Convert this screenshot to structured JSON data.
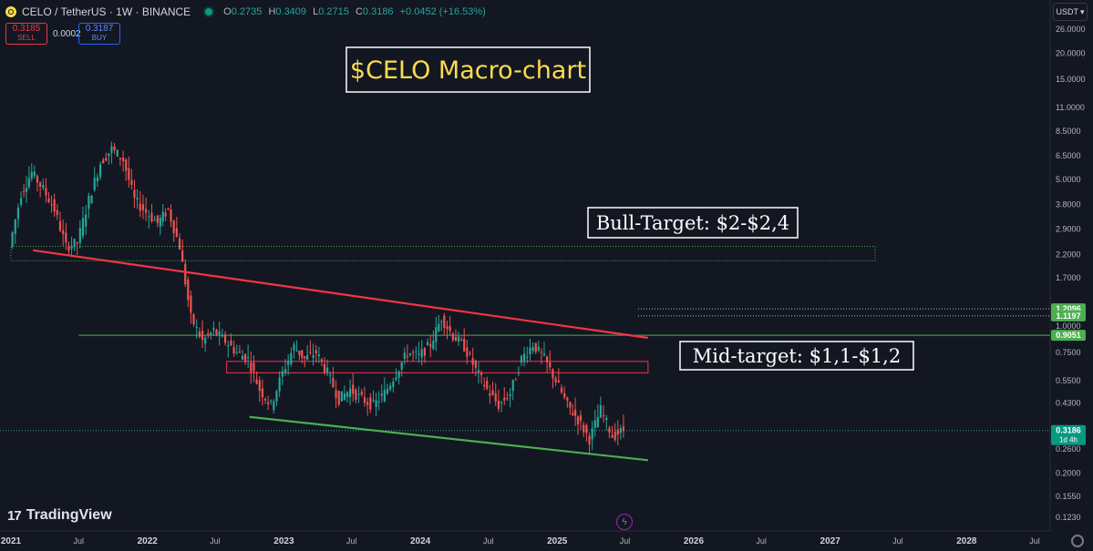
{
  "header": {
    "symbol": "CELO / TetherUS · 1W · BINANCE",
    "ohlc": [
      {
        "k": "O",
        "v": "0.2735"
      },
      {
        "k": "H",
        "v": "0.3409"
      },
      {
        "k": "L",
        "v": "0.2715"
      },
      {
        "k": "C",
        "v": "0.3186"
      }
    ],
    "change": "+0.0452 (+16.53%)"
  },
  "trade": {
    "sell_price": "0.3185",
    "sell_label": "SELL",
    "spread": "0.0002",
    "buy_price": "0.3187",
    "buy_label": "BUY"
  },
  "currency": "USDT",
  "branding": {
    "name": "TradingView",
    "mark": "17"
  },
  "colors": {
    "background": "#131722",
    "up": "#26a69a",
    "down": "#ef5350",
    "resistance": "#f23645",
    "support": "#4caf50",
    "annotation": "#ffffff",
    "title_text": "#fcdc4d"
  },
  "chart_data": {
    "type": "candlestick",
    "y_scale": "log",
    "ylim": [
      0.11,
      31
    ],
    "title": "$CELO Macro-chart",
    "y_ticks": [
      "26.0000",
      "20.0000",
      "15.0000",
      "11.0000",
      "8.5000",
      "6.5000",
      "5.0000",
      "3.8000",
      "2.9000",
      "2.2000",
      "1.7000",
      "1.0000",
      "0.7500",
      "0.5500",
      "0.4300",
      "0.3186",
      "0.2600",
      "0.2000",
      "0.1550",
      "0.1230"
    ],
    "y_tick_values": [
      26,
      20,
      15,
      11,
      8.5,
      6.5,
      5,
      3.8,
      2.9,
      2.2,
      1.7,
      1.0,
      0.75,
      0.55,
      0.43,
      0.3186,
      0.26,
      0.2,
      0.155,
      0.123
    ],
    "x_ticks": [
      "2021",
      "Jul",
      "2022",
      "Jul",
      "2023",
      "Jul",
      "2024",
      "Jul",
      "2025",
      "Jul",
      "2026",
      "Jul",
      "2027",
      "Jul",
      "2028",
      "Jul"
    ],
    "x_tick_dates": [
      "2021-01",
      "2021-07",
      "2022-01",
      "2022-07",
      "2023-01",
      "2023-07",
      "2024-01",
      "2024-07",
      "2025-01",
      "2025-07",
      "2026-01",
      "2026-07",
      "2027-01",
      "2027-07",
      "2028-01",
      "2028-07"
    ],
    "price_labels": [
      {
        "text": "1.2096",
        "value": 1.2096
      },
      {
        "text": "1.1197",
        "value": 1.1197
      },
      {
        "text": "0.9051",
        "value": 0.9051
      },
      {
        "text": "0.3186",
        "sub": "1d 4h",
        "value": 0.3186
      }
    ],
    "candles_close_path": [
      [
        "2021-01",
        2.4
      ],
      [
        "2021-02",
        4.3
      ],
      [
        "2021-03",
        5.4
      ],
      [
        "2021-04",
        4.5
      ],
      [
        "2021-05",
        3.6
      ],
      [
        "2021-06",
        2.4
      ],
      [
        "2021-07",
        2.5
      ],
      [
        "2021-08",
        4.0
      ],
      [
        "2021-09",
        6.0
      ],
      [
        "2021-10",
        7.0
      ],
      [
        "2021-11",
        6.2
      ],
      [
        "2021-12",
        4.0
      ],
      [
        "2022-01",
        3.5
      ],
      [
        "2022-02",
        3.1
      ],
      [
        "2022-03",
        3.6
      ],
      [
        "2022-04",
        2.4
      ],
      [
        "2022-05",
        1.1
      ],
      [
        "2022-06",
        0.85
      ],
      [
        "2022-07",
        0.95
      ],
      [
        "2022-08",
        0.85
      ],
      [
        "2022-09",
        0.75
      ],
      [
        "2022-10",
        0.7
      ],
      [
        "2022-11",
        0.5
      ],
      [
        "2022-12",
        0.42
      ],
      [
        "2023-01",
        0.6
      ],
      [
        "2023-02",
        0.8
      ],
      [
        "2023-03",
        0.7
      ],
      [
        "2023-04",
        0.75
      ],
      [
        "2023-05",
        0.6
      ],
      [
        "2023-06",
        0.45
      ],
      [
        "2023-07",
        0.5
      ],
      [
        "2023-08",
        0.45
      ],
      [
        "2023-09",
        0.42
      ],
      [
        "2023-10",
        0.48
      ],
      [
        "2023-11",
        0.6
      ],
      [
        "2023-12",
        0.75
      ],
      [
        "2024-01",
        0.72
      ],
      [
        "2024-02",
        0.82
      ],
      [
        "2024-03",
        1.1
      ],
      [
        "2024-04",
        0.9
      ],
      [
        "2024-05",
        0.8
      ],
      [
        "2024-06",
        0.62
      ],
      [
        "2024-07",
        0.5
      ],
      [
        "2024-08",
        0.42
      ],
      [
        "2024-09",
        0.48
      ],
      [
        "2024-10",
        0.7
      ],
      [
        "2024-11",
        0.82
      ],
      [
        "2024-12",
        0.7
      ],
      [
        "2025-01",
        0.55
      ],
      [
        "2025-02",
        0.42
      ],
      [
        "2025-03",
        0.36
      ],
      [
        "2025-04",
        0.29
      ],
      [
        "2025-05",
        0.4
      ],
      [
        "2025-06",
        0.3
      ],
      [
        "2025-07",
        0.3186
      ]
    ],
    "annotations": [
      {
        "text": "$CELO Macro-chart",
        "style": "title"
      },
      {
        "text": "Bull-Target: $2-$2,4",
        "low": 2.0,
        "high": 2.4
      },
      {
        "text": "Mid-target: $1,1-$1,2",
        "low": 1.1,
        "high": 1.2
      }
    ],
    "trendlines": [
      {
        "name": "resistance",
        "from": [
          "2021-03",
          2.3
        ],
        "to": [
          "2025-09",
          0.88
        ]
      },
      {
        "name": "support",
        "from": [
          "2022-10",
          0.37
        ],
        "to": [
          "2025-09",
          0.23
        ]
      }
    ],
    "zones": [
      {
        "name": "bull-target-zone",
        "low": 2.05,
        "high": 2.4,
        "from": "2021-01",
        "to": "2027-05",
        "style": "dotted"
      },
      {
        "name": "red-zone",
        "low": 0.6,
        "high": 0.68,
        "from": "2022-08",
        "to": "2025-09"
      },
      {
        "name": "horizontal-support",
        "value": 0.9051,
        "from": "2021-07",
        "to": "2028-12"
      }
    ]
  }
}
